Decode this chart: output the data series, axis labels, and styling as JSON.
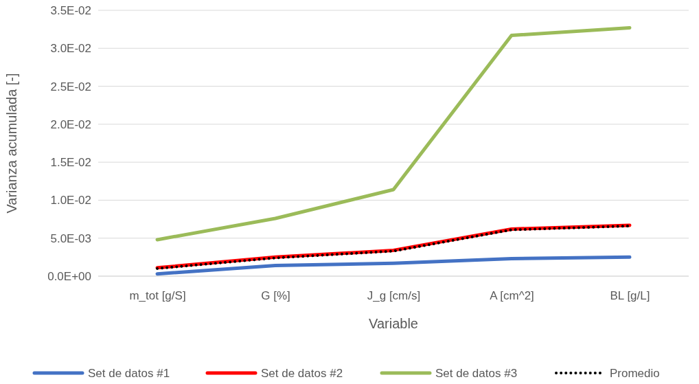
{
  "chart_data": {
    "type": "line",
    "xlabel": "Variable",
    "ylabel": "Varianza acumulada [-]",
    "categories": [
      "m_tot [g/S]",
      "G [%]",
      "J_g [cm/s]",
      "A [cm^2]",
      "BL [g/L]"
    ],
    "series": [
      {
        "name": "Set de datos #1",
        "color": "#4472c4",
        "values": [
          0.0003,
          0.0014,
          0.0017,
          0.0023,
          0.0025
        ]
      },
      {
        "name": "Set de datos #2",
        "color": "#ff0000",
        "values": [
          0.0011,
          0.0025,
          0.0034,
          0.0062,
          0.0067
        ]
      },
      {
        "name": "Set de datos #3",
        "color": "#9bbb59",
        "values": [
          0.0048,
          0.0076,
          0.0114,
          0.0317,
          0.0327
        ]
      },
      {
        "name": "Promedio",
        "color": "#000000",
        "line_style": "dotted",
        "values": [
          0.001,
          0.0024,
          0.0033,
          0.0061,
          0.0066
        ]
      }
    ],
    "ylim": [
      0,
      0.035
    ],
    "yticks": [
      {
        "value": 0,
        "label": "0.0E+00"
      },
      {
        "value": 0.005,
        "label": "5.0E-03"
      },
      {
        "value": 0.01,
        "label": "1.0E-02"
      },
      {
        "value": 0.015,
        "label": "1.5E-02"
      },
      {
        "value": 0.02,
        "label": "2.0E-02"
      },
      {
        "value": 0.025,
        "label": "2.5E-02"
      },
      {
        "value": 0.03,
        "label": "3.0E-02"
      },
      {
        "value": 0.035,
        "label": "3.5E-02"
      }
    ],
    "grid": "y",
    "legend": "bottom",
    "marker": "none",
    "line_style": "solid"
  }
}
